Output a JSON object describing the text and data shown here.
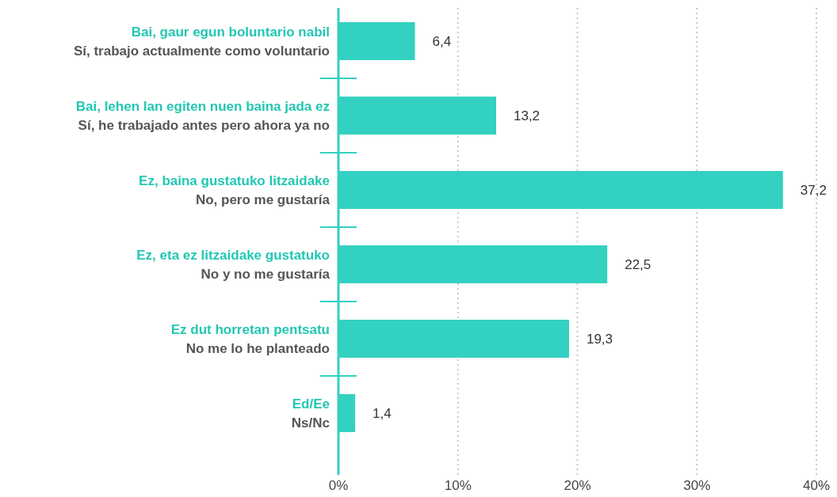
{
  "chart_data": {
    "type": "bar",
    "orientation": "horizontal",
    "categories": [
      "Bai, gaur egun boluntario nabil\nSí, trabajo actualmente como voluntario",
      "Bai, lehen lan egiten nuen baina jada ez\nSí, he trabajado antes pero ahora ya no",
      "Ez, baina gustatuko litzaidake\nNo, pero me gustaría",
      "Ez, eta ez litzaidake gustatuko\nNo y no me gustaría",
      "Ez dut horretan pentsatu\nNo me lo he planteado",
      "Ed/Ee\nNs/Nc"
    ],
    "values": [
      6.4,
      13.2,
      37.2,
      22.5,
      19.3,
      1.4
    ],
    "value_labels": [
      "6,4",
      "13,2",
      "37,2",
      "22,5",
      "19,3",
      "1,4"
    ],
    "color": "#33d1c1",
    "xlim": [
      0,
      40
    ],
    "xticks": [
      {
        "value": 0,
        "label": "0%"
      },
      {
        "value": 10,
        "label": "10%"
      },
      {
        "value": 20,
        "label": "20%"
      },
      {
        "value": 30,
        "label": "30%"
      },
      {
        "value": 40,
        "label": "40%"
      }
    ],
    "grid": "x"
  }
}
